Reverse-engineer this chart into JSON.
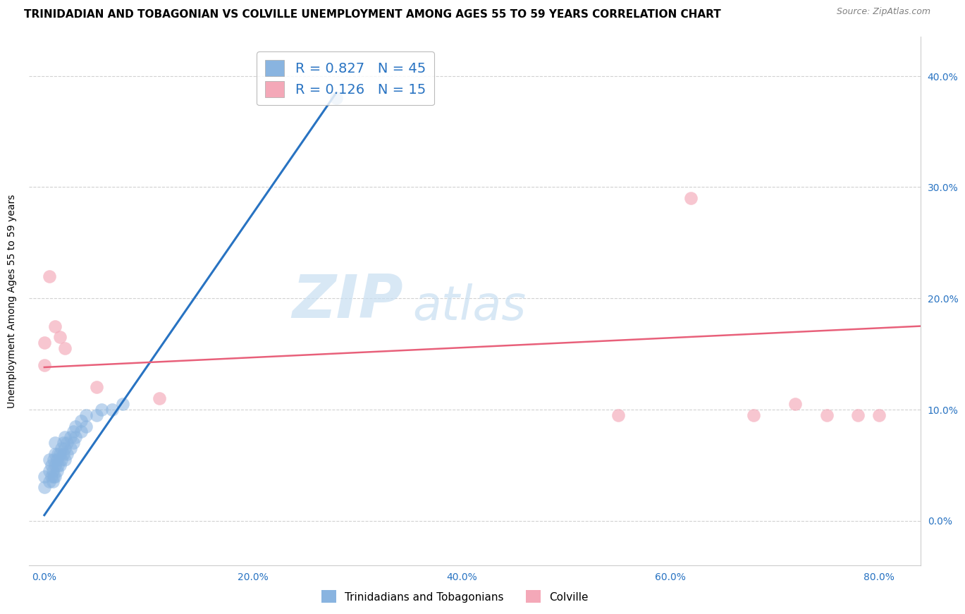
{
  "title": "TRINIDADIAN AND TOBAGONIAN VS COLVILLE UNEMPLOYMENT AMONG AGES 55 TO 59 YEARS CORRELATION CHART",
  "source": "Source: ZipAtlas.com",
  "ylabel": "Unemployment Among Ages 55 to 59 years",
  "xticklabels": [
    "0.0%",
    "20.0%",
    "40.0%",
    "60.0%",
    "80.0%"
  ],
  "xtick_values": [
    0.0,
    0.2,
    0.4,
    0.6,
    0.8
  ],
  "yticklabels_right": [
    "0.0%",
    "10.0%",
    "20.0%",
    "30.0%",
    "40.0%"
  ],
  "ytick_values": [
    0.0,
    0.1,
    0.2,
    0.3,
    0.4
  ],
  "xlim": [
    -0.015,
    0.84
  ],
  "ylim": [
    -0.04,
    0.435
  ],
  "blue_R": 0.827,
  "blue_N": 45,
  "pink_R": 0.126,
  "pink_N": 15,
  "blue_color": "#89b4e0",
  "pink_color": "#f4a8b8",
  "blue_line_color": "#2873c2",
  "pink_line_color": "#e8607a",
  "watermark_zip": "ZIP",
  "watermark_atlas": "atlas",
  "legend_label_blue": "Trinidadians and Tobagonians",
  "legend_label_pink": "Colville",
  "blue_scatter_x": [
    0.0,
    0.0,
    0.005,
    0.005,
    0.005,
    0.007,
    0.007,
    0.008,
    0.008,
    0.009,
    0.009,
    0.01,
    0.01,
    0.01,
    0.01,
    0.012,
    0.012,
    0.013,
    0.013,
    0.015,
    0.015,
    0.016,
    0.016,
    0.018,
    0.018,
    0.02,
    0.02,
    0.02,
    0.022,
    0.022,
    0.025,
    0.025,
    0.028,
    0.028,
    0.03,
    0.03,
    0.035,
    0.035,
    0.04,
    0.04,
    0.05,
    0.055,
    0.065,
    0.075,
    0.28
  ],
  "blue_scatter_y": [
    0.03,
    0.04,
    0.035,
    0.045,
    0.055,
    0.04,
    0.05,
    0.035,
    0.045,
    0.04,
    0.055,
    0.04,
    0.05,
    0.06,
    0.07,
    0.045,
    0.055,
    0.05,
    0.06,
    0.05,
    0.06,
    0.055,
    0.065,
    0.06,
    0.07,
    0.055,
    0.065,
    0.075,
    0.06,
    0.07,
    0.065,
    0.075,
    0.07,
    0.08,
    0.075,
    0.085,
    0.08,
    0.09,
    0.085,
    0.095,
    0.095,
    0.1,
    0.1,
    0.105,
    0.38
  ],
  "pink_scatter_x": [
    0.0,
    0.0,
    0.005,
    0.01,
    0.015,
    0.02,
    0.05,
    0.11,
    0.55,
    0.62,
    0.68,
    0.72,
    0.75,
    0.78,
    0.8
  ],
  "pink_scatter_y": [
    0.14,
    0.16,
    0.22,
    0.175,
    0.165,
    0.155,
    0.12,
    0.11,
    0.095,
    0.29,
    0.095,
    0.105,
    0.095,
    0.095,
    0.095
  ],
  "blue_trendline_x": [
    0.0,
    0.28
  ],
  "blue_trendline_y": [
    0.005,
    0.385
  ],
  "pink_trendline_x": [
    0.0,
    0.84
  ],
  "pink_trendline_y": [
    0.138,
    0.175
  ],
  "grid_color": "#cccccc",
  "background_color": "#ffffff",
  "title_fontsize": 11,
  "axis_fontsize": 10,
  "tick_fontsize": 10,
  "legend_fontsize": 14
}
